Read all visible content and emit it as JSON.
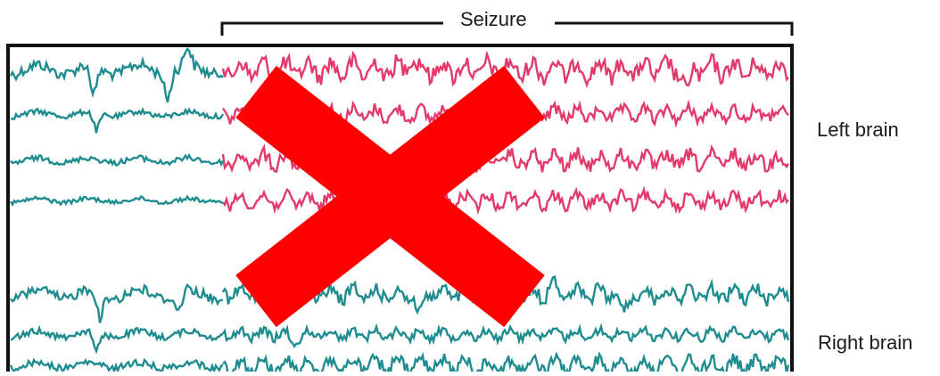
{
  "labels": {
    "seizure": "Seizure",
    "left_brain": "Left brain",
    "right_brain": "Right brain"
  },
  "colors": {
    "normal_trace": "#1f8c8f",
    "seizure_trace": "#e23a6a",
    "frame": "#111111",
    "cross": "#ff0000"
  },
  "icons": {
    "overlay": "red-x-cross-icon"
  }
}
